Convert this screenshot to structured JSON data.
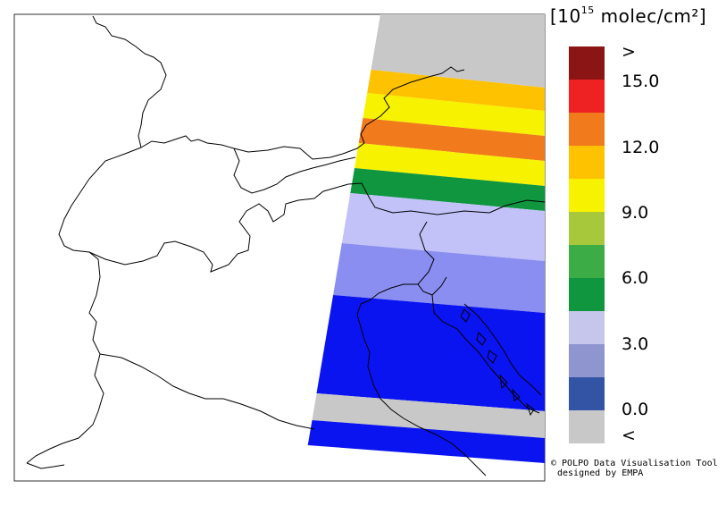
{
  "legend": {
    "unit_prefix": "[10",
    "unit_exp": "15",
    "unit_suffix": " molec/cm²]",
    "colors": [
      "#8b1414",
      "#ee2222",
      "#f07a1c",
      "#ffc200",
      "#f7f200",
      "#a7c83a",
      "#3cad46",
      "#0f963f",
      "#c6c6ec",
      "#8f95cf",
      "#3353a4",
      "#c8c8c8"
    ],
    "labels": [
      ">",
      "15.0",
      "12.0",
      "9.0",
      "6.0",
      "3.0",
      "0.0",
      "<"
    ]
  },
  "swath_rows": [
    {
      "color": "#c8c8c8",
      "meaning": "below range"
    },
    {
      "color": "#ffc200",
      "meaning": "10.5-12.0"
    },
    {
      "color": "#f7f200",
      "meaning": "9.0-10.5"
    },
    {
      "color": "#f07a1c",
      "meaning": "12.0-13.5"
    },
    {
      "color": "#f7f200",
      "meaning": "9.0-10.5"
    },
    {
      "color": "#0f963f",
      "meaning": "4.5-6.0"
    },
    {
      "color": "#c2c2f8",
      "meaning": "3.0-4.5"
    },
    {
      "color": "#8a8ef0",
      "meaning": "1.5-3.0"
    },
    {
      "color": "#0a14f0",
      "meaning": "0.0-1.5"
    },
    {
      "color": "#c8c8c8",
      "meaning": "below range"
    },
    {
      "color": "#0a14f0",
      "meaning": "0.0-1.5"
    }
  ],
  "credit": {
    "line1": "© POLPO Data Visualisation Tool",
    "line2": "designed by EMPA"
  }
}
